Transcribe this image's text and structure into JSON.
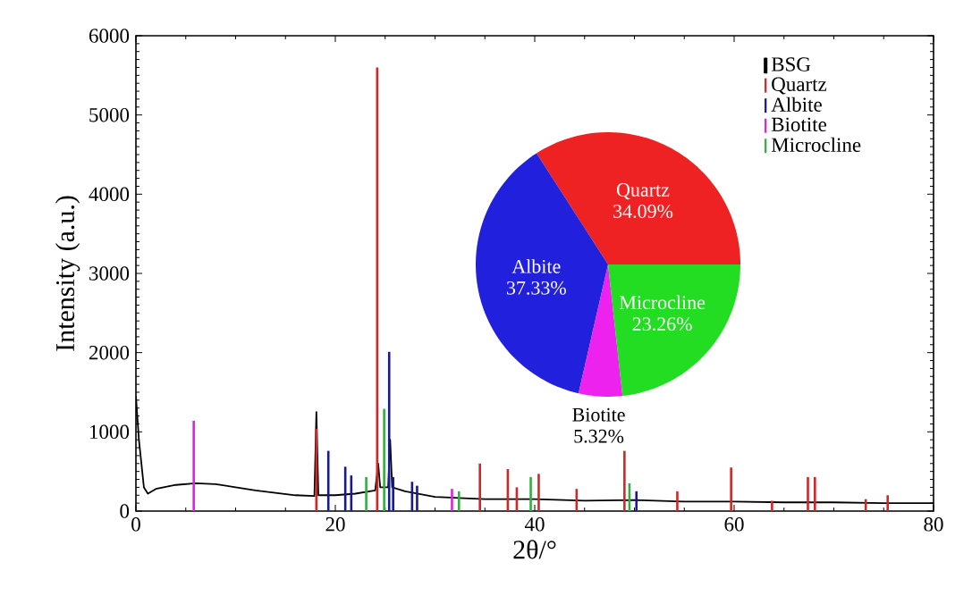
{
  "chart_data": [
    {
      "type": "line",
      "xlabel": "2θ/°",
      "ylabel": "Intensity (a.u.)",
      "xlim": [
        0,
        80
      ],
      "ylim": [
        0,
        6000
      ],
      "xticks": [
        0,
        20,
        40,
        60,
        80
      ],
      "yticks": [
        0,
        1000,
        2000,
        3000,
        4000,
        5000,
        6000
      ],
      "legend": "top right",
      "series": [
        {
          "name": "BSG",
          "type": "line",
          "color": "#000000",
          "x": [
            0,
            0.3,
            0.8,
            1.2,
            2,
            4,
            6,
            8,
            10,
            12,
            14,
            16,
            17.9,
            18.1,
            18.3,
            20,
            22,
            24,
            24.3,
            24.5,
            25.3,
            25.5,
            25.7,
            27,
            30,
            35,
            40,
            45,
            50,
            55,
            60,
            65,
            70,
            75,
            80
          ],
          "values": [
            1450,
            900,
            300,
            220,
            280,
            330,
            350,
            340,
            300,
            260,
            230,
            200,
            190,
            1250,
            200,
            200,
            220,
            260,
            600,
            300,
            300,
            900,
            300,
            250,
            180,
            150,
            150,
            130,
            140,
            120,
            120,
            110,
            110,
            100,
            100
          ]
        },
        {
          "name": "Quartz",
          "type": "bar",
          "color": "#d02828",
          "x": [
            18.1,
            24.2,
            34.5,
            37.3,
            38.2,
            40.4,
            44.2,
            49.0,
            54.3,
            59.7,
            63.8,
            67.4,
            68.1,
            73.2,
            75.4
          ],
          "values": [
            1040,
            5600,
            600,
            530,
            300,
            470,
            280,
            760,
            250,
            550,
            130,
            430,
            430,
            150,
            200
          ]
        },
        {
          "name": "Albite",
          "type": "bar",
          "color": "#1a1a90",
          "x": [
            19.3,
            21.0,
            21.6,
            25.4,
            25.8,
            27.7,
            28.2,
            50.2
          ],
          "values": [
            760,
            560,
            450,
            2010,
            430,
            370,
            320,
            250
          ]
        },
        {
          "name": "Biotite",
          "type": "bar",
          "color": "#e020e0",
          "x": [
            5.8,
            31.7
          ],
          "values": [
            1140,
            280
          ]
        },
        {
          "name": "Microcline",
          "type": "bar",
          "color": "#30b040",
          "x": [
            23.1,
            24.9,
            32.4,
            39.6,
            49.5
          ],
          "values": [
            430,
            1290,
            250,
            430,
            350
          ]
        }
      ]
    },
    {
      "type": "pie",
      "categories": [
        "Quartz",
        "Albite",
        "Biotite",
        "Microcline"
      ],
      "values": [
        34.09,
        37.33,
        5.32,
        23.26
      ],
      "value_labels": [
        "34.09%",
        "37.33%",
        "5.32%",
        "23.26%"
      ],
      "colors": [
        "#ee2222",
        "#2020dd",
        "#ee22ee",
        "#22dd22"
      ]
    }
  ]
}
